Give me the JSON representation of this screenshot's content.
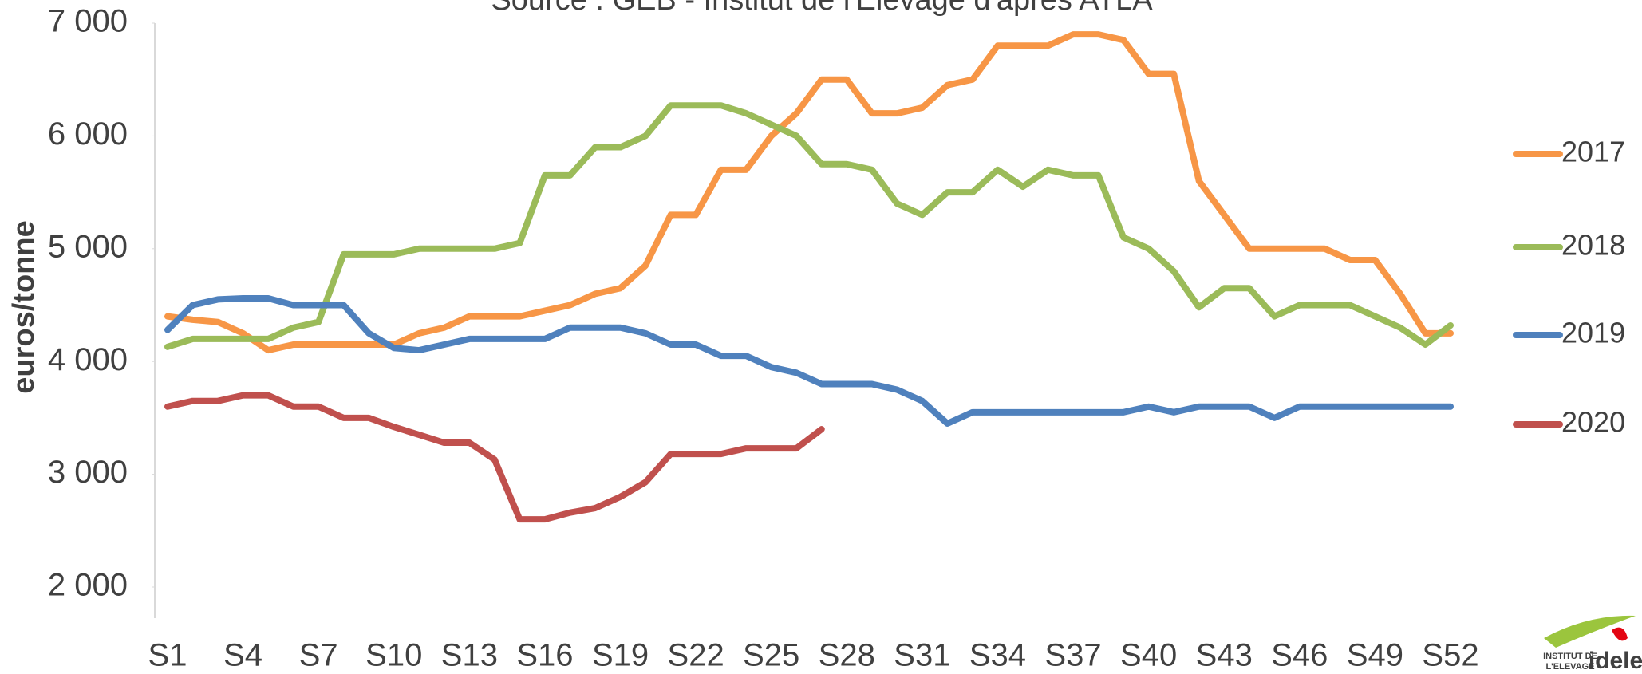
{
  "chart_data": {
    "type": "line",
    "subtitle": "Source : GEB - Institut de l'Elevage d'après ATLA",
    "y_label": "euros/tonne",
    "categories": [
      "S1",
      null,
      null,
      "S4",
      null,
      null,
      "S7",
      null,
      null,
      "S10",
      null,
      null,
      "S13",
      null,
      null,
      "S16",
      null,
      null,
      "S19",
      null,
      null,
      "S22",
      null,
      null,
      "S25",
      null,
      null,
      "S28",
      null,
      null,
      "S31",
      null,
      null,
      "S34",
      null,
      null,
      "S37",
      null,
      null,
      "S40",
      null,
      null,
      "S43",
      null,
      null,
      "S46",
      null,
      null,
      "S49",
      null,
      null,
      "S52"
    ],
    "ylim": [
      2000,
      7000
    ],
    "yticks": [
      {
        "value": 2000,
        "label": "2 000"
      },
      {
        "value": 3000,
        "label": "3 000"
      },
      {
        "value": 4000,
        "label": "4 000"
      },
      {
        "value": 5000,
        "label": "5 000"
      },
      {
        "value": 6000,
        "label": "6 000"
      },
      {
        "value": 7000,
        "label": "7 000"
      }
    ],
    "grid": false,
    "legend": "right",
    "series": [
      {
        "name": "2017",
        "color": "#f79646",
        "values": [
          4400,
          4370,
          4350,
          4250,
          4100,
          4150,
          4150,
          4150,
          4150,
          4150,
          4250,
          4300,
          4400,
          4400,
          4400,
          4450,
          4500,
          4600,
          4650,
          4850,
          5300,
          5300,
          5700,
          5700,
          6000,
          6200,
          6500,
          6500,
          6200,
          6200,
          6250,
          6450,
          6500,
          6800,
          6800,
          6800,
          6900,
          6900,
          6850,
          6550,
          6550,
          5600,
          5300,
          5000,
          5000,
          5000,
          5000,
          4900,
          4900,
          4600,
          4250,
          4250
        ]
      },
      {
        "name": "2018",
        "color": "#9bbb59",
        "values": [
          4130,
          4200,
          4200,
          4200,
          4200,
          4300,
          4350,
          4950,
          4950,
          4950,
          5000,
          5000,
          5000,
          5000,
          5050,
          5650,
          5650,
          5900,
          5900,
          6000,
          6270,
          6270,
          6270,
          6200,
          6100,
          6000,
          5750,
          5750,
          5700,
          5400,
          5300,
          5500,
          5500,
          5700,
          5550,
          5700,
          5650,
          5650,
          5100,
          5000,
          4800,
          4480,
          4650,
          4650,
          4400,
          4500,
          4500,
          4500,
          4400,
          4300,
          4150,
          4320
        ]
      },
      {
        "name": "2019",
        "color": "#4f81bd",
        "values": [
          4280,
          4500,
          4550,
          4560,
          4560,
          4500,
          4500,
          4500,
          4250,
          4120,
          4100,
          4150,
          4200,
          4200,
          4200,
          4200,
          4300,
          4300,
          4300,
          4250,
          4150,
          4150,
          4050,
          4050,
          3950,
          3900,
          3800,
          3800,
          3800,
          3750,
          3650,
          3450,
          3550,
          3550,
          3550,
          3550,
          3550,
          3550,
          3550,
          3600,
          3550,
          3600,
          3600,
          3600,
          3500,
          3600,
          3600,
          3600,
          3600,
          3600,
          3600,
          3600
        ]
      },
      {
        "name": "2020",
        "color": "#c0504d",
        "values": [
          3600,
          3650,
          3650,
          3700,
          3700,
          3600,
          3600,
          3500,
          3500,
          3420,
          3350,
          3280,
          3280,
          3130,
          2600,
          2600,
          2660,
          2700,
          2800,
          2930,
          3180,
          3180,
          3180,
          3230,
          3230,
          3230,
          3400,
          null,
          null,
          null,
          null,
          null,
          null,
          null,
          null,
          null,
          null,
          null,
          null,
          null,
          null,
          null,
          null,
          null,
          null,
          null,
          null,
          null,
          null,
          null,
          null,
          null
        ]
      }
    ]
  },
  "logo": {
    "line1": "INSTITUT DE",
    "line2": "L'ELEVAGE",
    "brand": "idele"
  }
}
